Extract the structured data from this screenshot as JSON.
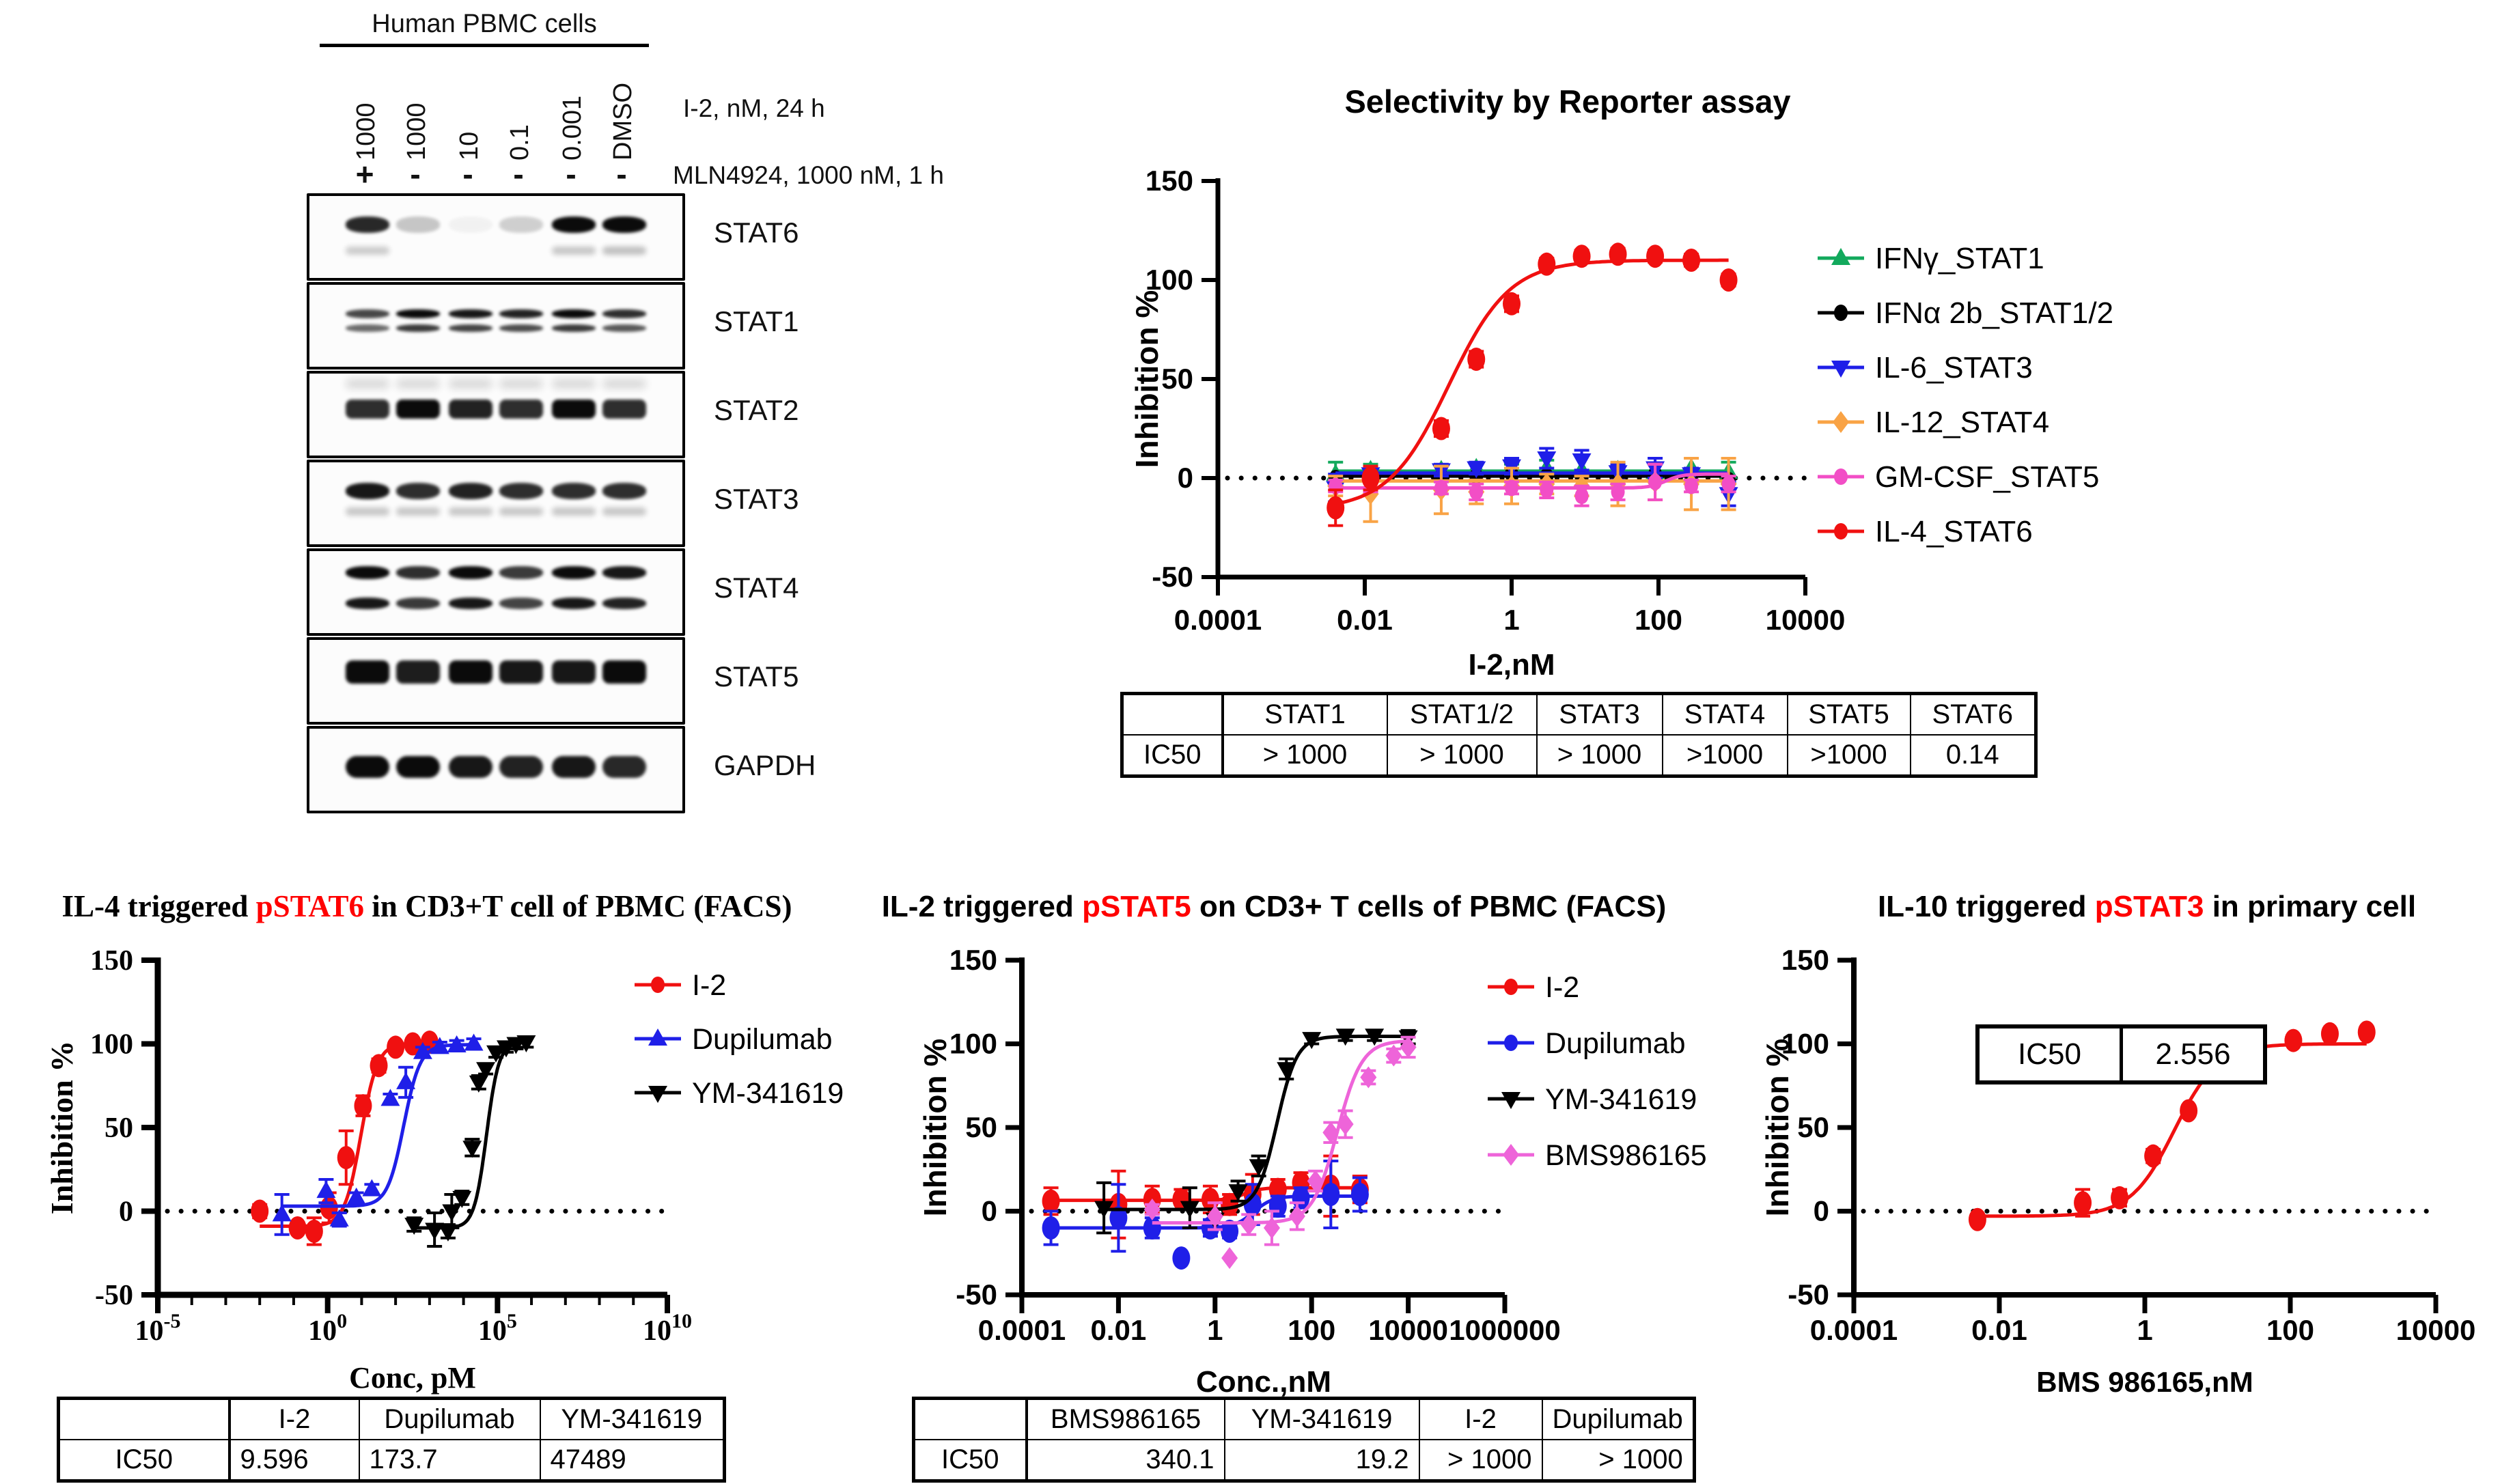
{
  "figure": {
    "background": "#ffffff"
  },
  "colors": {
    "red": "#F01010",
    "blue": "#1F1FE8",
    "green": "#12A95C",
    "orange": "#F9A345",
    "magenta": "#F24EC6",
    "pink": "#EE64D9",
    "black": "#000000",
    "title_red": "#FF0000"
  },
  "blot": {
    "header": "Human PBMC cells",
    "lane_labels": [
      "1000",
      "1000",
      "10",
      "0.1",
      "0.001",
      "DMSO"
    ],
    "condition_row1": {
      "label": "I-2, nM, 24 h"
    },
    "condition_row2": {
      "label": "MLN4924, 1000 nM, 1 h"
    },
    "plus_minus": [
      "+",
      "-",
      "-",
      "-",
      "-",
      "-"
    ],
    "rows": [
      {
        "label": "STAT6",
        "pattern": "single",
        "bands": [
          0.88,
          0.22,
          0.04,
          0.18,
          1,
          1
        ],
        "echo": [
          0.2,
          0,
          0,
          0,
          0.22,
          0.25
        ]
      },
      {
        "label": "STAT1",
        "pattern": "doubletight",
        "bands": [
          0.75,
          1,
          0.95,
          0.9,
          1,
          0.85
        ]
      },
      {
        "label": "STAT2",
        "pattern": "thick",
        "bands": [
          0.85,
          1,
          0.9,
          0.85,
          1,
          0.85
        ],
        "smudge": 0.15
      },
      {
        "label": "STAT3",
        "pattern": "singleecho",
        "bands": [
          0.95,
          0.85,
          0.9,
          0.85,
          0.85,
          0.85
        ]
      },
      {
        "label": "STAT4",
        "pattern": "doublewide",
        "bands": [
          1,
          0.85,
          1,
          0.8,
          1,
          0.95
        ]
      },
      {
        "label": "STAT5",
        "pattern": "fat",
        "bands": [
          1,
          0.92,
          1,
          0.95,
          0.95,
          1
        ]
      },
      {
        "label": "GAPDH",
        "pattern": "round",
        "bands": [
          1,
          1,
          0.95,
          0.9,
          0.95,
          0.88
        ]
      }
    ]
  },
  "chart_data": [
    {
      "id": "reporter",
      "type": "scatter",
      "title_parts": [
        {
          "t": "Selectivity by Reporter assay",
          "c": "#000000"
        }
      ],
      "ylabel": "Inhibition %",
      "xlabel": "I-2,nM",
      "ylim": [
        -50,
        150
      ],
      "yticks": [
        -50,
        0,
        50,
        100,
        150
      ],
      "xmin": -4,
      "xmax": 4,
      "xticks": [
        {
          "e": -4,
          "l": "0.0001"
        },
        {
          "e": -2,
          "l": "0.01"
        },
        {
          "e": 0,
          "l": "1"
        },
        {
          "e": 2,
          "l": "100"
        },
        {
          "e": 4,
          "l": "10000"
        }
      ],
      "zero_line": true,
      "legend": true,
      "series": [
        {
          "name": "IFNγ_STAT1",
          "color": "#12A95C",
          "marker": "triup",
          "x": [
            0.004,
            0.012,
            0.11,
            0.33,
            1,
            3,
            9,
            28,
            90,
            280,
            900
          ],
          "y": [
            2,
            4,
            4,
            5,
            4,
            5,
            4,
            4,
            3,
            5,
            3
          ],
          "err": [
            6,
            3,
            0,
            0,
            3,
            4,
            0,
            3,
            4,
            0,
            5
          ],
          "fit": {
            "type": "flat",
            "value": 3.5
          }
        },
        {
          "name": "IFNα 2b_STAT1/2",
          "color": "#000000",
          "marker": "circle",
          "x": [
            0.004,
            0.012,
            0.11,
            0.33,
            1,
            3,
            9,
            28,
            90,
            280,
            900
          ],
          "y": [
            0,
            1,
            1,
            1,
            2,
            1,
            0,
            0,
            2,
            1,
            -1
          ],
          "err": [
            0,
            0,
            0,
            0,
            0,
            0,
            0,
            0,
            0,
            0,
            0
          ],
          "fit": {
            "type": "flat",
            "value": 1
          }
        },
        {
          "name": "IL-6_STAT3",
          "color": "#1F1FE8",
          "marker": "tridown",
          "x": [
            0.004,
            0.012,
            0.11,
            0.33,
            1,
            3,
            9,
            28,
            90,
            280,
            900
          ],
          "y": [
            -5,
            2,
            4,
            5,
            6,
            10,
            9,
            3,
            5,
            2,
            -8
          ],
          "err": [
            7,
            4,
            3,
            3,
            4,
            5,
            5,
            4,
            5,
            3,
            6
          ],
          "fit": {
            "type": "flat",
            "value": 2.5
          }
        },
        {
          "name": "IL-12_STAT4",
          "color": "#F9A345",
          "marker": "diamond",
          "x": [
            0.004,
            0.012,
            0.11,
            0.33,
            1,
            3,
            9,
            28,
            90,
            280,
            900
          ],
          "y": [
            -4,
            -8,
            -6,
            -7,
            -4,
            -3,
            -4,
            -3,
            -2,
            -3,
            -3
          ],
          "err": [
            5,
            14,
            12,
            6,
            9,
            5,
            5,
            11,
            9,
            13,
            13
          ],
          "fit": {
            "type": "flat",
            "value": -1.5
          }
        },
        {
          "name": "GM-CSF_STAT5",
          "color": "#F24EC6",
          "marker": "circle",
          "x": [
            0.004,
            0.012,
            0.11,
            0.33,
            1,
            3,
            9,
            28,
            90,
            280,
            900
          ],
          "y": [
            -4,
            -3,
            -5,
            -7,
            -5,
            -6,
            -9,
            -7,
            -2,
            -4,
            -3
          ],
          "err": [
            3,
            4,
            3,
            4,
            3,
            4,
            5,
            4,
            9,
            3,
            4
          ],
          "fit": {
            "type": "sigmoid",
            "bottom": -5,
            "top": 2,
            "logec50": 2.1,
            "hill": 4
          }
        },
        {
          "name": "IL-4_STAT6",
          "color": "#F01010",
          "marker": "circlebig",
          "x": [
            0.004,
            0.012,
            0.11,
            0.33,
            1,
            3,
            9,
            28,
            90,
            280,
            900
          ],
          "y": [
            -15,
            0,
            25,
            60,
            88,
            108,
            112,
            113,
            112,
            110,
            100
          ],
          "err": [
            9,
            6,
            4,
            4,
            4,
            3,
            3,
            3,
            3,
            3,
            3
          ],
          "fit": {
            "type": "sigmoid",
            "bottom": -16,
            "top": 110,
            "logec50": -0.854,
            "hill": 1.05
          }
        }
      ],
      "table": {
        "headers": [
          "",
          "STAT1",
          "STAT1/2",
          "STAT3",
          "STAT4",
          "STAT5",
          "STAT6"
        ],
        "rows": [
          [
            "IC50",
            "> 1000",
            "> 1000",
            "> 1000",
            ">1000",
            ">1000",
            "0.14"
          ]
        ]
      }
    },
    {
      "id": "pstat6",
      "type": "scatter",
      "serif": true,
      "title_parts": [
        {
          "t": "IL-4 triggered ",
          "c": "#000000"
        },
        {
          "t": "pSTAT6",
          "c": "#FF0000"
        },
        {
          "t": " in CD3+T cell of PBMC (FACS)",
          "c": "#000000"
        }
      ],
      "ylabel": "Inhibition %",
      "xlabel": "Conc, pM",
      "ylim": [
        -50,
        150
      ],
      "yticks": [
        -50,
        0,
        50,
        100,
        150
      ],
      "xmin": -5,
      "xmax": 10,
      "minor": true,
      "xticks": [
        {
          "e": -5,
          "sup": "-5"
        },
        {
          "e": 0,
          "sup": "0"
        },
        {
          "e": 5,
          "sup": "5"
        },
        {
          "e": 10,
          "sup": "10"
        }
      ],
      "zero_line": true,
      "legend": true,
      "series": [
        {
          "name": "I-2",
          "color": "#F01010",
          "marker": "circlebig",
          "x": [
            0.01,
            0.13,
            0.4,
            1.1,
            3.5,
            11,
            32,
            100,
            320,
            1000
          ],
          "y": [
            0,
            -10,
            -12,
            2,
            32,
            63,
            87,
            98,
            100,
            101
          ],
          "err": [
            4,
            3,
            8,
            9,
            16,
            6,
            4,
            3,
            3,
            3
          ],
          "fit": {
            "type": "sigmoid",
            "bottom": -9,
            "top": 100.5,
            "logec50": 0.982,
            "hill": 1.8
          }
        },
        {
          "name": "Dupilumab",
          "color": "#1F1FE8",
          "marker": "triup",
          "x": [
            0.045,
            0.9,
            2.2,
            7,
            20,
            70,
            200,
            630,
            2000,
            6300,
            20000
          ],
          "y": [
            -2,
            12,
            -5,
            8,
            13,
            67,
            77,
            95,
            98,
            99,
            100
          ],
          "err": [
            12,
            7,
            4,
            3,
            3,
            3,
            9,
            3,
            3,
            3,
            3
          ],
          "fit": {
            "type": "sigmoid",
            "bottom": 3,
            "top": 99.5,
            "logec50": 2.2398,
            "hill": 1.8
          }
        },
        {
          "name": "YM-341619",
          "color": "#000000",
          "marker": "tridown",
          "x": [
            350,
            1400,
            3500,
            4500,
            9000,
            18000,
            28000,
            45000,
            90000,
            180000,
            350000,
            700000
          ],
          "y": [
            -8,
            -11,
            -12,
            0,
            8,
            38,
            77,
            85,
            95,
            98,
            100,
            101
          ],
          "err": [
            4,
            10,
            4,
            10,
            4,
            5,
            4,
            3,
            3,
            3,
            3,
            3
          ],
          "fit": {
            "type": "sigmoid",
            "bottom": -10,
            "top": 101,
            "logec50": 4.6766,
            "hill": 2.4
          }
        }
      ],
      "table": {
        "headers": [
          "",
          "I-2",
          "Dupilumab",
          "YM-341619"
        ],
        "rows": [
          [
            "IC50",
            "9.596",
            "173.7",
            "47489"
          ]
        ]
      },
      "ic50": {
        "I-2": "9.596",
        "Dupilumab": "173.7",
        "YM-341619": "47489"
      }
    },
    {
      "id": "pstat5",
      "type": "scatter",
      "title_parts": [
        {
          "t": "IL-2 triggered ",
          "c": "#000000"
        },
        {
          "t": "pSTAT5",
          "c": "#FF0000"
        },
        {
          "t": " on CD3+ T cells of PBMC (FACS)",
          "c": "#000000"
        }
      ],
      "ylabel": "Inhibition %",
      "xlabel": "Conc.,nM",
      "ylim": [
        -50,
        150
      ],
      "yticks": [
        -50,
        0,
        50,
        100,
        150
      ],
      "xmin": -4,
      "xmax": 6,
      "xticks": [
        {
          "e": -4,
          "l": "0.0001"
        },
        {
          "e": -2,
          "l": "0.01"
        },
        {
          "e": 0,
          "l": "1"
        },
        {
          "e": 2,
          "l": "100"
        },
        {
          "e": 4,
          "l": "10000"
        },
        {
          "e": 6,
          "l": "1000000"
        }
      ],
      "zero_line": true,
      "legend": true,
      "series": [
        {
          "name": "I-2",
          "color": "#F01010",
          "marker": "circlebig",
          "x": [
            0.0004,
            0.01,
            0.05,
            0.2,
            0.8,
            2,
            6,
            20,
            60,
            250,
            1000
          ],
          "y": [
            6,
            4,
            7,
            7,
            7,
            4,
            10,
            13,
            17,
            15,
            13
          ],
          "err": [
            8,
            20,
            8,
            6,
            8,
            6,
            12,
            6,
            6,
            18,
            8
          ],
          "fit": {
            "type": "sigmoid",
            "bottom": 6.5,
            "top": 14,
            "logec50": 0.6,
            "hill": 2.5
          }
        },
        {
          "name": "Dupilumab",
          "color": "#1F1FE8",
          "marker": "circlebig",
          "x": [
            0.0004,
            0.01,
            0.05,
            0.2,
            0.8,
            2,
            6,
            20,
            60,
            250,
            1000
          ],
          "y": [
            -10,
            -4,
            -10,
            -28,
            -10,
            -12,
            4,
            3,
            8,
            10,
            10
          ],
          "err": [
            10,
            20,
            6,
            0,
            5,
            4,
            12,
            6,
            6,
            20,
            10
          ],
          "fit": {
            "type": "sigmoid",
            "bottom": -10,
            "top": 9,
            "logec50": 0.8,
            "hill": 2.2
          }
        },
        {
          "name": "YM-341619",
          "color": "#000000",
          "marker": "tridown",
          "x": [
            0.005,
            0.3,
            1,
            3,
            8,
            30,
            100,
            500,
            2000,
            10000
          ],
          "y": [
            2,
            2,
            -5,
            12,
            27,
            85,
            103,
            105,
            105,
            104
          ],
          "err": [
            15,
            12,
            6,
            6,
            6,
            6,
            3,
            3,
            3,
            4
          ],
          "fit": {
            "type": "sigmoid",
            "bottom": 1,
            "top": 104.5,
            "logec50": 1.2833,
            "hill": 2.1
          }
        },
        {
          "name": "BMS986165",
          "color": "#EE64D9",
          "marker": "diamond",
          "x": [
            0.05,
            1,
            2,
            5,
            15,
            50,
            120,
            250,
            500,
            1500,
            5000,
            10000
          ],
          "y": [
            1,
            -3,
            -28,
            -8,
            -10,
            -3,
            18,
            47,
            52,
            80,
            93,
            98
          ],
          "err": [
            3,
            8,
            0,
            6,
            10,
            8,
            6,
            6,
            8,
            4,
            4,
            6
          ],
          "fit": {
            "type": "sigmoid",
            "bottom": -7,
            "top": 102,
            "logec50": 2.5317,
            "hill": 1.7
          }
        }
      ],
      "table": {
        "headers": [
          "",
          "BMS986165",
          "YM-341619",
          "I-2",
          "Dupilumab"
        ],
        "rows": [
          [
            "IC50",
            "340.1",
            "19.2",
            "> 1000",
            "> 1000"
          ]
        ]
      },
      "ic50": {
        "BMS986165": "340.1",
        "YM-341619": "19.2",
        "I-2": "> 1000",
        "Dupilumab": "> 1000"
      }
    },
    {
      "id": "pstat3",
      "type": "scatter",
      "title_parts": [
        {
          "t": "IL-10 triggered ",
          "c": "#000000"
        },
        {
          "t": "pSTAT3",
          "c": "#FF0000"
        },
        {
          "t": " in primary cell",
          "c": "#000000"
        }
      ],
      "ylabel": "Inhibition %",
      "xlabel": "BMS 986165,nM",
      "ylim": [
        -50,
        150
      ],
      "yticks": [
        -50,
        0,
        50,
        100,
        150
      ],
      "xmin": -4,
      "xmax": 4,
      "xticks": [
        {
          "e": -4,
          "l": "0.0001"
        },
        {
          "e": -2,
          "l": "0.01"
        },
        {
          "e": 0,
          "l": "1"
        },
        {
          "e": 2,
          "l": "100"
        },
        {
          "e": 4,
          "l": "10000"
        }
      ],
      "zero_line": true,
      "legend": false,
      "inset": {
        "label": "IC50",
        "value": "2.556"
      },
      "series": [
        {
          "name": "BMS986165",
          "color": "#F01010",
          "marker": "circlebig",
          "x": [
            0.005,
            0.14,
            0.45,
            1.3,
            4,
            12.5,
            35,
            110,
            350,
            1120
          ],
          "y": [
            -5,
            5,
            8,
            33,
            60,
            84,
            97,
            102,
            106,
            107
          ],
          "err": [
            3,
            8,
            5,
            4,
            3,
            3,
            3,
            3,
            3,
            3
          ],
          "fit": {
            "type": "sigmoid",
            "bottom": -3,
            "top": 100,
            "logec50": 0.4076,
            "hill": 1.45
          }
        }
      ]
    }
  ]
}
